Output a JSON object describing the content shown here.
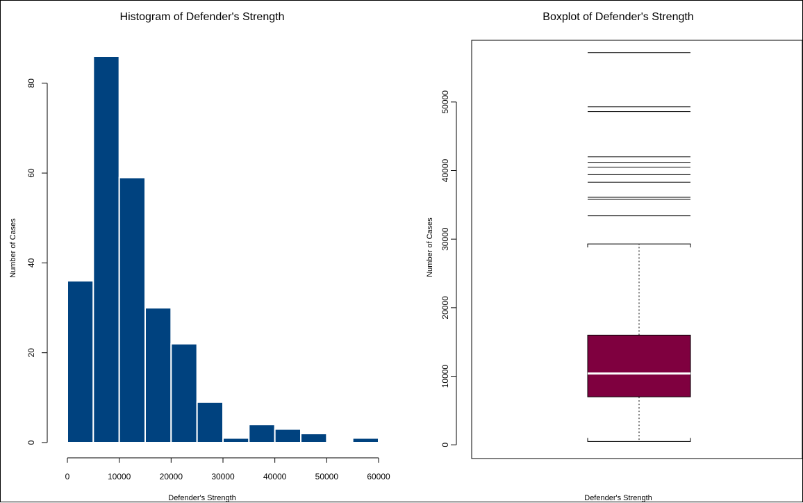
{
  "chart_data": [
    {
      "type": "bar",
      "title": "Histogram of Defender's Strength",
      "xlabel": "Defender's Strength",
      "ylabel": "Number of Cases",
      "bin_edges": [
        0,
        5000,
        10000,
        15000,
        20000,
        25000,
        30000,
        35000,
        40000,
        45000,
        50000,
        55000,
        60000
      ],
      "values": [
        36,
        86,
        59,
        30,
        22,
        9,
        1,
        4,
        3,
        2,
        0,
        1
      ],
      "xlim": [
        0,
        60000
      ],
      "ylim": [
        0,
        86
      ],
      "x_ticks": [
        "0",
        "10000",
        "20000",
        "30000",
        "40000",
        "50000",
        "60000"
      ],
      "y_ticks": [
        "0",
        "20",
        "40",
        "60",
        "80"
      ],
      "bar_color": "#00427F",
      "grid": false
    },
    {
      "type": "boxplot",
      "title": "Boxplot of Defender's Strength",
      "xlabel": "Defender's Strength",
      "ylabel": "Number of Cases",
      "whisker_low": 500,
      "q1": 7000,
      "median": 10400,
      "q3": 16000,
      "whisker_high": 29300,
      "outliers": [
        33400,
        35800,
        36100,
        38300,
        39400,
        40500,
        41200,
        42000,
        48600,
        49300,
        57200
      ],
      "ylim": [
        -2000,
        59000
      ],
      "y_ticks": [
        "0",
        "10000",
        "20000",
        "30000",
        "40000",
        "50000"
      ],
      "box_color": "#7F003F",
      "grid": false
    }
  ]
}
